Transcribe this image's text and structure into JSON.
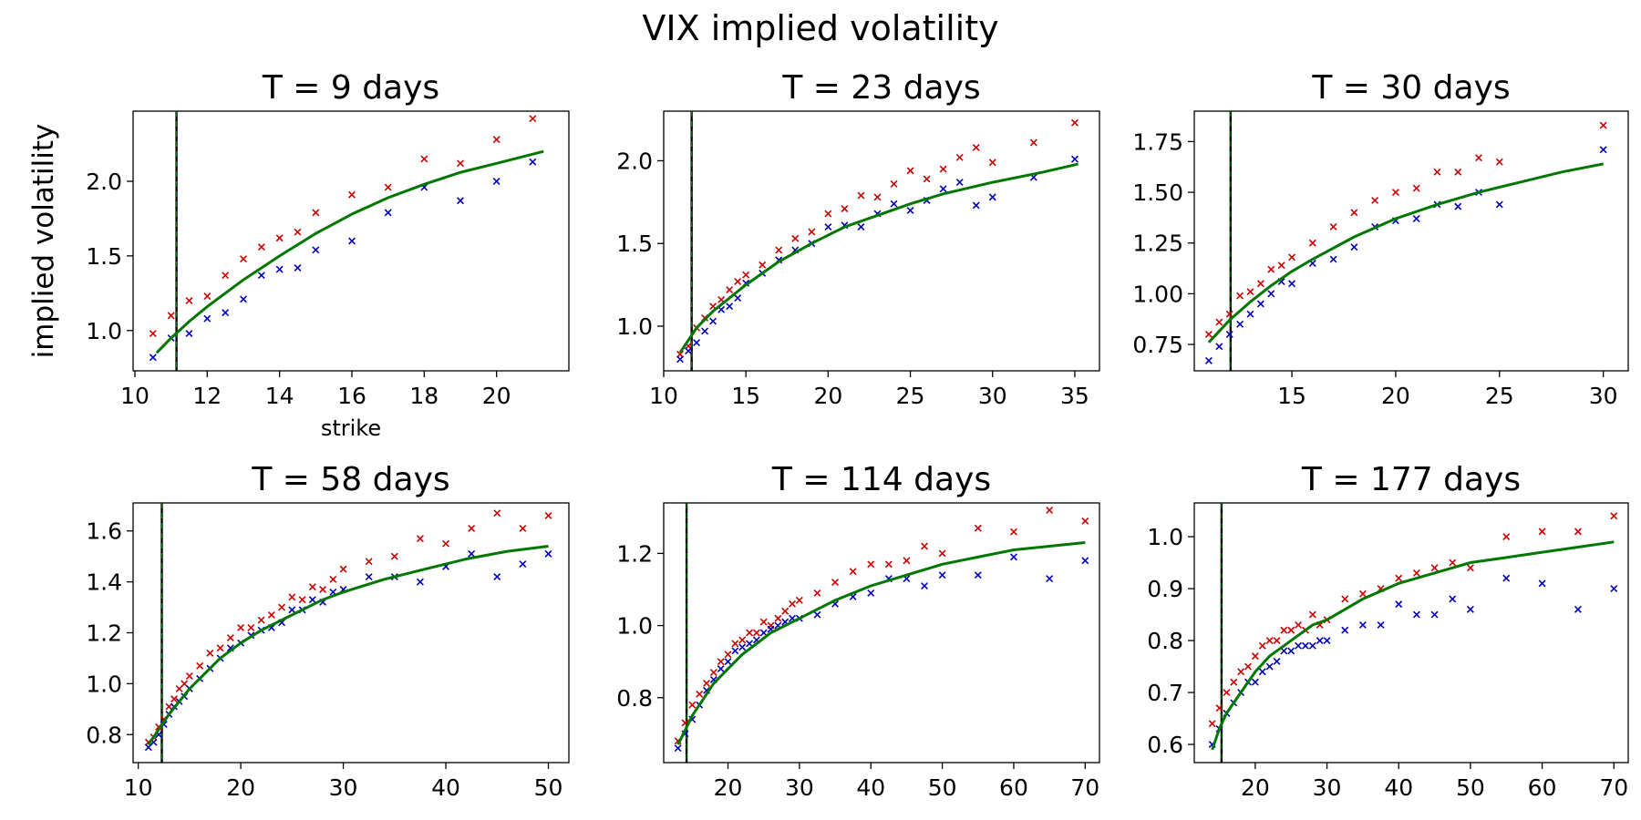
{
  "figure": {
    "title": "VIX implied volatility"
  },
  "colors": {
    "bid": "#cc0000",
    "ask": "#0000bb",
    "model": "#007700",
    "forward_line": "#000000"
  },
  "chart_data": [
    {
      "type": "scatter",
      "title": "T = 9 days",
      "xlabel": "strike",
      "ylabel": "implied volatility",
      "xlim": [
        9.95,
        22.0
      ],
      "ylim": [
        0.73,
        2.47
      ],
      "xticks": [
        10,
        12,
        14,
        16,
        18,
        20
      ],
      "yticks": [
        1.0,
        1.5,
        2.0
      ],
      "forward": 11.15,
      "series": [
        {
          "role": "bid",
          "marker": "x",
          "color": "#cc0000",
          "x": [
            10.5,
            11.0,
            11.5,
            12.0,
            12.5,
            13.0,
            13.5,
            14.0,
            14.5,
            15.0,
            16.0,
            17.0,
            18.0,
            19.0,
            20.0,
            21.0
          ],
          "y": [
            0.98,
            1.1,
            1.2,
            1.23,
            1.37,
            1.48,
            1.56,
            1.62,
            1.66,
            1.79,
            1.91,
            1.96,
            2.15,
            2.12,
            2.28,
            2.42
          ]
        },
        {
          "role": "ask",
          "marker": "x",
          "color": "#0000bb",
          "x": [
            10.5,
            11.0,
            11.5,
            12.0,
            12.5,
            13.0,
            13.5,
            14.0,
            14.5,
            15.0,
            16.0,
            17.0,
            18.0,
            19.0,
            20.0,
            21.0
          ],
          "y": [
            0.82,
            0.95,
            0.98,
            1.08,
            1.12,
            1.21,
            1.37,
            1.41,
            1.42,
            1.54,
            1.6,
            1.79,
            1.96,
            1.87,
            2.0,
            2.13
          ]
        },
        {
          "role": "model",
          "type": "line",
          "color": "#007700",
          "x": [
            10.6,
            11.0,
            11.5,
            12.0,
            13.0,
            14.0,
            15.0,
            16.0,
            17.0,
            18.0,
            19.0,
            20.0,
            21.3
          ],
          "y": [
            0.85,
            0.95,
            1.06,
            1.16,
            1.34,
            1.5,
            1.65,
            1.78,
            1.89,
            1.98,
            2.06,
            2.12,
            2.2
          ]
        }
      ]
    },
    {
      "type": "scatter",
      "title": "T = 23 days",
      "xlim": [
        10.0,
        36.5
      ],
      "ylim": [
        0.73,
        2.3
      ],
      "xticks": [
        10,
        15,
        20,
        25,
        30,
        35
      ],
      "yticks": [
        1.0,
        1.5,
        2.0
      ],
      "forward": 11.7,
      "series": [
        {
          "role": "bid",
          "marker": "x",
          "color": "#cc0000",
          "x": [
            11,
            11.5,
            12,
            12.5,
            13,
            13.5,
            14,
            14.5,
            15,
            16,
            17,
            18,
            19,
            20,
            21,
            22,
            23,
            24,
            25,
            26,
            27,
            28,
            29,
            30,
            32.5,
            35
          ],
          "y": [
            0.83,
            0.88,
            0.99,
            1.05,
            1.12,
            1.16,
            1.22,
            1.27,
            1.31,
            1.37,
            1.46,
            1.53,
            1.57,
            1.68,
            1.71,
            1.79,
            1.78,
            1.86,
            1.94,
            1.89,
            1.95,
            2.02,
            2.08,
            1.99,
            2.11,
            2.23
          ]
        },
        {
          "role": "ask",
          "marker": "x",
          "color": "#0000bb",
          "x": [
            11,
            11.5,
            12,
            12.5,
            13,
            13.5,
            14,
            14.5,
            15,
            16,
            17,
            18,
            19,
            20,
            21,
            22,
            23,
            24,
            25,
            26,
            27,
            28,
            29,
            30,
            32.5,
            35
          ],
          "y": [
            0.8,
            0.85,
            0.9,
            0.97,
            1.03,
            1.1,
            1.12,
            1.17,
            1.26,
            1.32,
            1.4,
            1.46,
            1.5,
            1.6,
            1.61,
            1.6,
            1.68,
            1.74,
            1.7,
            1.76,
            1.83,
            1.87,
            1.73,
            1.78,
            1.9,
            2.01
          ]
        },
        {
          "role": "model",
          "type": "line",
          "color": "#007700",
          "x": [
            11.0,
            12.0,
            13.0,
            14.0,
            15.0,
            17.0,
            19.0,
            21.0,
            23.0,
            25.0,
            27.0,
            30.0,
            33.0,
            35.2
          ],
          "y": [
            0.84,
            0.99,
            1.09,
            1.17,
            1.25,
            1.39,
            1.5,
            1.6,
            1.67,
            1.74,
            1.8,
            1.87,
            1.93,
            1.98
          ]
        }
      ]
    },
    {
      "type": "scatter",
      "title": "T = 30 days",
      "xlim": [
        10.3,
        31.2
      ],
      "ylim": [
        0.62,
        1.9
      ],
      "xticks": [
        15,
        20,
        25,
        30
      ],
      "yticks": [
        0.75,
        1.0,
        1.25,
        1.5,
        1.75
      ],
      "forward": 12.05,
      "series": [
        {
          "role": "bid",
          "marker": "x",
          "color": "#cc0000",
          "x": [
            11,
            11.5,
            12,
            12.5,
            13,
            13.5,
            14,
            14.5,
            15,
            16,
            17,
            18,
            19,
            20,
            21,
            22,
            23,
            24,
            25,
            30
          ],
          "y": [
            0.8,
            0.86,
            0.9,
            0.99,
            1.01,
            1.05,
            1.12,
            1.14,
            1.18,
            1.25,
            1.33,
            1.4,
            1.46,
            1.5,
            1.52,
            1.6,
            1.6,
            1.67,
            1.65,
            1.83
          ]
        },
        {
          "role": "ask",
          "marker": "x",
          "color": "#0000bb",
          "x": [
            11,
            11.5,
            12,
            12.5,
            13,
            13.5,
            14,
            14.5,
            15,
            16,
            17,
            18,
            19,
            20,
            21,
            22,
            23,
            24,
            25,
            30
          ],
          "y": [
            0.67,
            0.74,
            0.8,
            0.85,
            0.9,
            0.95,
            1.0,
            1.06,
            1.05,
            1.15,
            1.17,
            1.23,
            1.33,
            1.36,
            1.37,
            1.44,
            1.43,
            1.5,
            1.44,
            1.71
          ]
        },
        {
          "role": "model",
          "type": "line",
          "color": "#007700",
          "x": [
            11.0,
            12.0,
            13.0,
            14.0,
            15.0,
            16.0,
            18.0,
            20.0,
            22.0,
            24.0,
            26.0,
            28.0,
            30.0
          ],
          "y": [
            0.76,
            0.87,
            0.96,
            1.04,
            1.11,
            1.17,
            1.28,
            1.37,
            1.44,
            1.5,
            1.55,
            1.6,
            1.64
          ]
        }
      ]
    },
    {
      "type": "scatter",
      "title": "T = 58 days",
      "xlim": [
        9.5,
        52.0
      ],
      "ylim": [
        0.69,
        1.71
      ],
      "xticks": [
        10,
        20,
        30,
        40,
        50
      ],
      "yticks": [
        0.8,
        1.0,
        1.2,
        1.4,
        1.6
      ],
      "forward": 12.3,
      "series": [
        {
          "role": "bid",
          "marker": "x",
          "color": "#cc0000",
          "x": [
            11,
            11.5,
            12,
            12.5,
            13,
            13.5,
            14,
            14.5,
            15,
            16,
            17,
            18,
            19,
            20,
            21,
            22,
            23,
            24,
            25,
            26,
            27,
            28,
            29,
            30,
            32.5,
            35,
            37.5,
            40,
            42.5,
            45,
            47.5,
            50
          ],
          "y": [
            0.77,
            0.79,
            0.83,
            0.86,
            0.91,
            0.94,
            0.98,
            1.0,
            1.03,
            1.07,
            1.12,
            1.14,
            1.18,
            1.22,
            1.22,
            1.25,
            1.27,
            1.3,
            1.34,
            1.33,
            1.38,
            1.37,
            1.41,
            1.45,
            1.48,
            1.5,
            1.57,
            1.55,
            1.61,
            1.67,
            1.61,
            1.66
          ]
        },
        {
          "role": "ask",
          "marker": "x",
          "color": "#0000bb",
          "x": [
            11,
            11.5,
            12,
            12.5,
            13,
            13.5,
            14,
            14.5,
            15,
            16,
            17,
            18,
            19,
            20,
            21,
            22,
            23,
            24,
            25,
            26,
            27,
            28,
            29,
            30,
            32.5,
            35,
            37.5,
            40,
            42.5,
            45,
            47.5,
            50
          ],
          "y": [
            0.75,
            0.77,
            0.8,
            0.84,
            0.88,
            0.91,
            0.93,
            0.95,
            0.98,
            1.02,
            1.06,
            1.1,
            1.14,
            1.16,
            1.19,
            1.21,
            1.22,
            1.24,
            1.29,
            1.29,
            1.33,
            1.32,
            1.36,
            1.37,
            1.42,
            1.42,
            1.4,
            1.46,
            1.51,
            1.42,
            1.47,
            1.51
          ]
        },
        {
          "role": "model",
          "type": "line",
          "color": "#007700",
          "x": [
            11.0,
            12.0,
            13.0,
            14.0,
            15.0,
            16.0,
            18.0,
            20.0,
            22.0,
            24.0,
            26.0,
            28.0,
            30.0,
            34.0,
            38.0,
            42.0,
            46.0,
            50.0
          ],
          "y": [
            0.76,
            0.82,
            0.88,
            0.93,
            0.98,
            1.02,
            1.1,
            1.16,
            1.21,
            1.25,
            1.29,
            1.33,
            1.36,
            1.41,
            1.45,
            1.49,
            1.52,
            1.54
          ]
        }
      ]
    },
    {
      "type": "scatter",
      "title": "T = 114 days",
      "xlim": [
        11.0,
        72.0
      ],
      "ylim": [
        0.62,
        1.34
      ],
      "xticks": [
        20,
        30,
        40,
        50,
        60,
        70
      ],
      "yticks": [
        0.8,
        1.0,
        1.2
      ],
      "forward": 14.2,
      "series": [
        {
          "role": "bid",
          "marker": "x",
          "color": "#cc0000",
          "x": [
            13,
            14,
            15,
            16,
            17,
            18,
            19,
            20,
            21,
            22,
            23,
            24,
            25,
            26,
            27,
            28,
            29,
            30,
            32.5,
            35,
            37.5,
            40,
            42.5,
            45,
            47.5,
            50,
            55,
            60,
            65,
            70
          ],
          "y": [
            0.68,
            0.73,
            0.78,
            0.81,
            0.84,
            0.87,
            0.9,
            0.92,
            0.95,
            0.96,
            0.98,
            0.98,
            1.01,
            1.0,
            1.02,
            1.04,
            1.06,
            1.07,
            1.09,
            1.12,
            1.15,
            1.17,
            1.17,
            1.18,
            1.22,
            1.2,
            1.27,
            1.26,
            1.32,
            1.29
          ]
        },
        {
          "role": "ask",
          "marker": "x",
          "color": "#0000bb",
          "x": [
            13,
            14,
            15,
            16,
            17,
            18,
            19,
            20,
            21,
            22,
            23,
            24,
            25,
            26,
            27,
            28,
            29,
            30,
            32.5,
            35,
            37.5,
            40,
            42.5,
            45,
            47.5,
            50,
            55,
            60,
            65,
            70
          ],
          "y": [
            0.66,
            0.7,
            0.74,
            0.78,
            0.82,
            0.85,
            0.88,
            0.9,
            0.93,
            0.94,
            0.95,
            0.96,
            0.98,
            0.99,
            1.0,
            1.01,
            1.02,
            1.02,
            1.03,
            1.06,
            1.08,
            1.09,
            1.13,
            1.13,
            1.11,
            1.14,
            1.14,
            1.19,
            1.13,
            1.18
          ]
        },
        {
          "role": "model",
          "type": "line",
          "color": "#007700",
          "x": [
            13.0,
            14.0,
            15.0,
            16.0,
            18.0,
            20.0,
            22.0,
            24.0,
            26.0,
            28.0,
            30.0,
            35.0,
            40.0,
            45.0,
            50.0,
            55.0,
            60.0,
            65.0,
            70.0
          ],
          "y": [
            0.67,
            0.71,
            0.75,
            0.78,
            0.84,
            0.88,
            0.92,
            0.95,
            0.98,
            1.0,
            1.02,
            1.07,
            1.11,
            1.14,
            1.17,
            1.19,
            1.21,
            1.22,
            1.23
          ]
        }
      ]
    },
    {
      "type": "scatter",
      "title": "T = 177 days",
      "xlim": [
        11.5,
        72.0
      ],
      "ylim": [
        0.565,
        1.065
      ],
      "xticks": [
        20,
        30,
        40,
        50,
        60,
        70
      ],
      "yticks": [
        0.6,
        0.7,
        0.8,
        0.9,
        1.0
      ],
      "forward": 15.3,
      "series": [
        {
          "role": "bid",
          "marker": "x",
          "color": "#cc0000",
          "x": [
            14,
            15,
            16,
            17,
            18,
            19,
            20,
            21,
            22,
            23,
            24,
            25,
            26,
            27,
            28,
            29,
            30,
            32.5,
            35,
            37.5,
            40,
            42.5,
            45,
            47.5,
            50,
            55,
            60,
            65,
            70
          ],
          "y": [
            0.64,
            0.67,
            0.7,
            0.72,
            0.74,
            0.75,
            0.77,
            0.79,
            0.8,
            0.8,
            0.82,
            0.82,
            0.83,
            0.82,
            0.85,
            0.83,
            0.84,
            0.88,
            0.89,
            0.9,
            0.92,
            0.93,
            0.94,
            0.95,
            0.94,
            1.0,
            1.01,
            1.01,
            1.04
          ]
        },
        {
          "role": "ask",
          "marker": "x",
          "color": "#0000bb",
          "x": [
            14,
            15,
            16,
            17,
            18,
            19,
            20,
            21,
            22,
            23,
            24,
            25,
            26,
            27,
            28,
            29,
            30,
            32.5,
            35,
            37.5,
            40,
            42.5,
            45,
            47.5,
            50,
            55,
            60,
            65,
            70
          ],
          "y": [
            0.6,
            0.63,
            0.66,
            0.68,
            0.7,
            0.72,
            0.72,
            0.74,
            0.75,
            0.76,
            0.78,
            0.78,
            0.79,
            0.79,
            0.79,
            0.8,
            0.8,
            0.82,
            0.83,
            0.83,
            0.87,
            0.85,
            0.85,
            0.88,
            0.86,
            0.92,
            0.91,
            0.86,
            0.9
          ]
        },
        {
          "role": "model",
          "type": "line",
          "color": "#007700",
          "x": [
            14.0,
            15.0,
            16.0,
            17.0,
            18.0,
            20.0,
            22.0,
            24.0,
            26.0,
            28.0,
            30.0,
            35.0,
            40.0,
            45.0,
            50.0,
            55.0,
            60.0,
            65.0,
            70.0
          ],
          "y": [
            0.59,
            0.63,
            0.66,
            0.68,
            0.7,
            0.74,
            0.77,
            0.79,
            0.81,
            0.83,
            0.84,
            0.88,
            0.91,
            0.93,
            0.95,
            0.96,
            0.97,
            0.98,
            0.99
          ]
        }
      ]
    }
  ]
}
